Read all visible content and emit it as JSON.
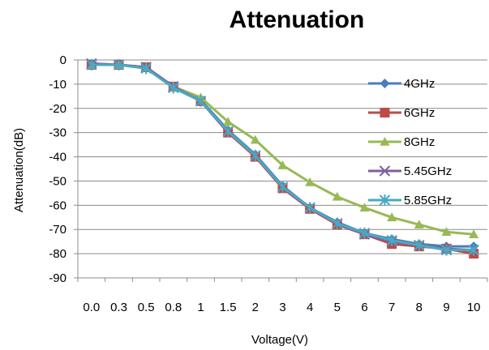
{
  "chart_data": {
    "type": "line",
    "title": "Attenuation",
    "xlabel": "Voltage(V)",
    "ylabel": "Attenuation(dB)",
    "categories": [
      "0.0",
      "0.3",
      "0.5",
      "0.8",
      "1",
      "1.5",
      "2",
      "3",
      "4",
      "5",
      "6",
      "7",
      "8",
      "9",
      "10"
    ],
    "ylim": [
      -90,
      0
    ],
    "yticks": [
      0,
      -10,
      -20,
      -30,
      -40,
      -50,
      -60,
      -70,
      -80,
      -90
    ],
    "grid": true,
    "legend_position": "right",
    "series": [
      {
        "name": "4GHz",
        "color": "#4a7ebb",
        "marker": "diamond",
        "values": [
          -1.5,
          -2,
          -3,
          -11,
          -16.5,
          -29,
          -39,
          -52,
          -61,
          -67,
          -71.5,
          -74,
          -76,
          -77,
          -77
        ]
      },
      {
        "name": "6GHz",
        "color": "#be4b48",
        "marker": "square",
        "values": [
          -2,
          -2,
          -3,
          -11,
          -17,
          -30,
          -40,
          -53,
          -61.5,
          -68,
          -72,
          -76,
          -77,
          -78,
          -80
        ]
      },
      {
        "name": "8GHz",
        "color": "#98b954",
        "marker": "triangle",
        "values": [
          -2,
          -2,
          -3,
          -11,
          -15.5,
          -25.5,
          -33,
          -43.5,
          -50.5,
          -56.5,
          -61,
          -65,
          -68,
          -71,
          -72
        ]
      },
      {
        "name": "5.45GHz",
        "color": "#7d60a0",
        "marker": "x",
        "values": [
          -1.5,
          -2,
          -3,
          -11,
          -17,
          -29.5,
          -39.5,
          -52.5,
          -61,
          -67.5,
          -72,
          -75,
          -76.5,
          -78,
          -78.5
        ]
      },
      {
        "name": "5.85GHz",
        "color": "#46aac5",
        "marker": "asterisk",
        "values": [
          -2,
          -2,
          -3.5,
          -11.5,
          -17,
          -29.5,
          -39.5,
          -52.5,
          -61,
          -67.5,
          -71.5,
          -74.5,
          -76.5,
          -78.5,
          -78.5
        ]
      }
    ]
  }
}
